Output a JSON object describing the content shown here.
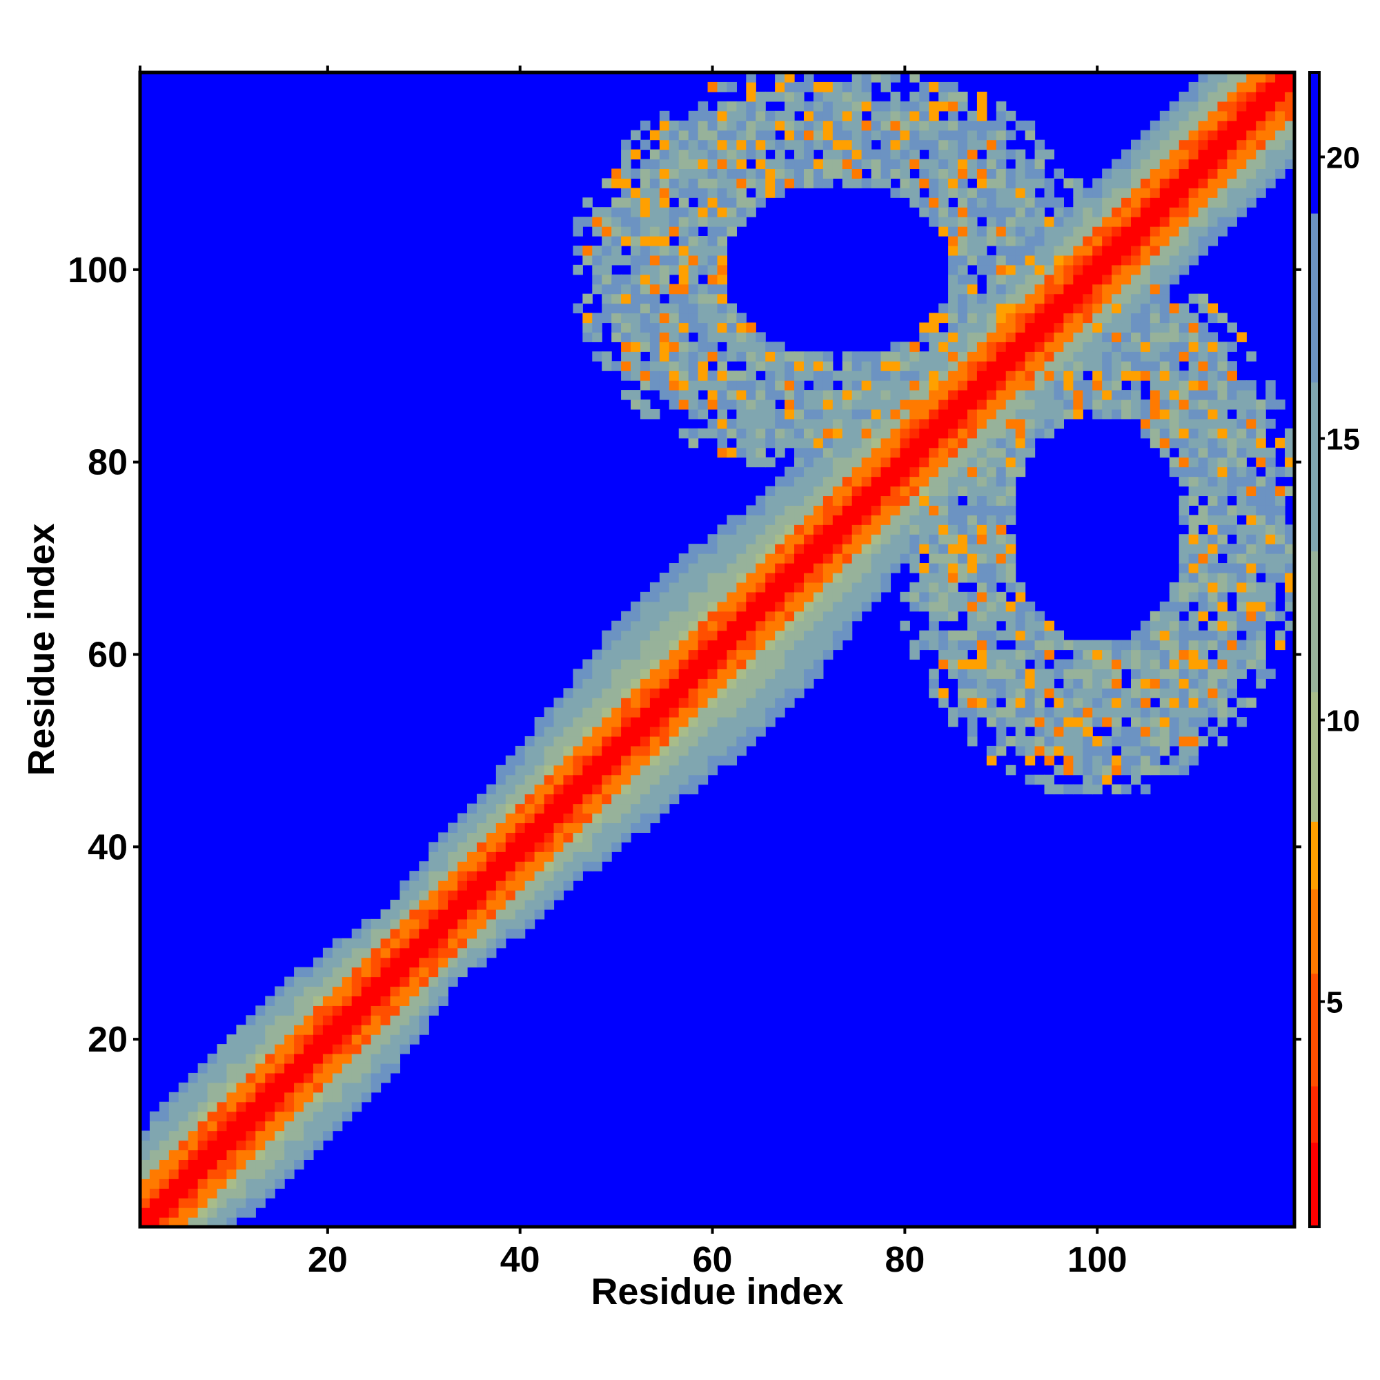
{
  "chart_data": {
    "type": "heatmap",
    "title": "",
    "xlabel": "Residue index",
    "ylabel": "Residue index",
    "xlim": [
      0.5,
      120.5
    ],
    "ylim": [
      0.5,
      120.5
    ],
    "x_ticks": [
      20,
      40,
      60,
      80,
      100
    ],
    "y_ticks": [
      20,
      40,
      60,
      80,
      100
    ],
    "n_residues": 120,
    "colorbar": {
      "range": [
        1,
        21.5
      ],
      "ticks": [
        5,
        10,
        15,
        20
      ],
      "colors": [
        {
          "max": 2.5,
          "color": "#ff0000"
        },
        {
          "max": 3.5,
          "color": "#ff2a00"
        },
        {
          "max": 5.5,
          "color": "#ff4f00"
        },
        {
          "max": 7.0,
          "color": "#ff7a00"
        },
        {
          "max": 8.2,
          "color": "#ffa000"
        },
        {
          "max": 10.5,
          "color": "#a8bc8a"
        },
        {
          "max": 13.0,
          "color": "#97b29a"
        },
        {
          "max": 16.0,
          "color": "#80a6b0"
        },
        {
          "max": 19.0,
          "color": "#6c93c2"
        },
        {
          "max": 21.5,
          "color": "#0000ff"
        }
      ]
    },
    "structure": {
      "diagonal_band": "distance grows with |i - j|; band widest near residues 55-65 and narrowest near residues 28-32",
      "off_diagonal_rings": [
        {
          "x_range": [
            47,
            103
          ],
          "y_range": [
            77,
            120
          ],
          "center": [
            73,
            100
          ],
          "hollow_center": true
        },
        {
          "x_range": [
            77,
            120
          ],
          "y_range": [
            48,
            104
          ],
          "center": [
            100,
            73
          ],
          "hollow_center": true
        }
      ],
      "background_value": 21.5
    }
  }
}
